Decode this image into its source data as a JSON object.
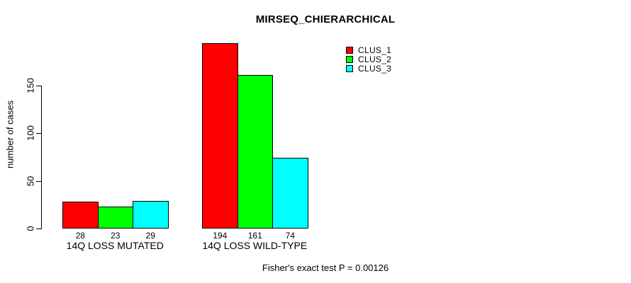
{
  "chart_data": {
    "type": "bar",
    "title": "MIRSEQ_CHIERARCHICAL",
    "categories": [
      "14Q LOSS MUTATED",
      "14Q LOSS WILD-TYPE"
    ],
    "series": [
      {
        "name": "CLUS_1",
        "color": "#ff0000",
        "values": [
          28,
          194
        ]
      },
      {
        "name": "CLUS_2",
        "color": "#00ff00",
        "values": [
          23,
          161
        ]
      },
      {
        "name": "CLUS_3",
        "color": "#00ffff",
        "values": [
          29,
          74
        ]
      }
    ],
    "ylabel": "number of cases",
    "xlabel": "",
    "yticks": [
      0,
      50,
      100,
      150
    ],
    "ylim": [
      0,
      203
    ],
    "grid": false,
    "legend_position": "top-right",
    "bar_border_color": "#000000",
    "background_color": "#ffffff",
    "annotation": "Fisher's exact test P = 0.00126"
  }
}
